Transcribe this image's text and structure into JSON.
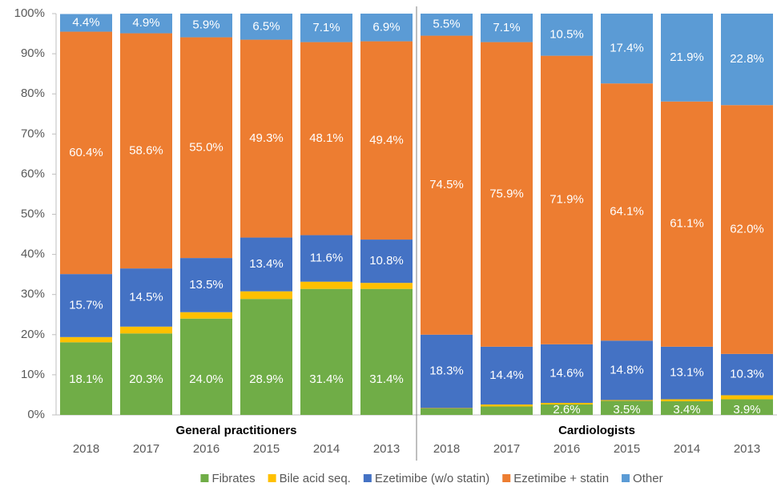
{
  "chart_data": {
    "type": "stacked_bar",
    "groups": [
      "General practitioners",
      "Cardiologists"
    ],
    "categories": [
      "2018",
      "2017",
      "2016",
      "2015",
      "2014",
      "2013",
      "2018",
      "2017",
      "2016",
      "2015",
      "2014",
      "2013"
    ],
    "ylim": [
      0,
      100
    ],
    "yticks": [
      {
        "value": 0,
        "label": "0%"
      },
      {
        "value": 10,
        "label": "10%"
      },
      {
        "value": 20,
        "label": "20%"
      },
      {
        "value": 30,
        "label": "30%"
      },
      {
        "value": 40,
        "label": "40%"
      },
      {
        "value": 50,
        "label": "50%"
      },
      {
        "value": 60,
        "label": "60%"
      },
      {
        "value": 70,
        "label": "70%"
      },
      {
        "value": 80,
        "label": "80%"
      },
      {
        "value": 90,
        "label": "90%"
      },
      {
        "value": 100,
        "label": "100%"
      }
    ],
    "legend": "bottom",
    "series": [
      {
        "name": "Fibrates",
        "color": "#70ad47",
        "values": [
          18.1,
          20.3,
          24.0,
          28.9,
          31.4,
          31.4,
          1.6,
          2.1,
          2.6,
          3.5,
          3.4,
          3.9
        ],
        "value_labels": [
          "18.1%",
          "20.3%",
          "24.0%",
          "28.9%",
          "31.4%",
          "31.4%",
          null,
          null,
          "2.6%",
          "3.5%",
          "3.4%",
          "3.9%"
        ]
      },
      {
        "name": "Bile acid seq.",
        "color": "#ffc000",
        "values": [
          1.3,
          1.7,
          1.6,
          1.9,
          1.8,
          1.5,
          0.1,
          0.5,
          0.4,
          0.2,
          0.5,
          1.0
        ]
      },
      {
        "name": "Ezetimibe (w/o statin)",
        "color": "#4472c4",
        "values": [
          15.7,
          14.5,
          13.5,
          13.4,
          11.6,
          10.8,
          18.3,
          14.4,
          14.6,
          14.8,
          13.1,
          10.3
        ],
        "value_labels": [
          "15.7%",
          "14.5%",
          "13.5%",
          "13.4%",
          "11.6%",
          "10.8%",
          "18.3%",
          "14.4%",
          "14.6%",
          "14.8%",
          "13.1%",
          "10.3%"
        ]
      },
      {
        "name": "Ezetimibe + statin",
        "color": "#ed7d31",
        "values": [
          60.4,
          58.6,
          55.0,
          49.3,
          48.1,
          49.4,
          74.5,
          75.9,
          71.9,
          64.1,
          61.1,
          62.0
        ],
        "value_labels": [
          "60.4%",
          "58.6%",
          "55.0%",
          "49.3%",
          "48.1%",
          "49.4%",
          "74.5%",
          "75.9%",
          "71.9%",
          "64.1%",
          "61.1%",
          "62.0%"
        ]
      },
      {
        "name": "Other",
        "color": "#5b9bd5",
        "values": [
          4.4,
          4.9,
          5.9,
          6.5,
          7.1,
          6.9,
          5.5,
          7.1,
          10.5,
          17.4,
          21.9,
          22.8
        ],
        "value_labels": [
          "4.4%",
          "4.9%",
          "5.9%",
          "6.5%",
          "7.1%",
          "6.9%",
          "5.5%",
          "7.1%",
          "10.5%",
          "17.4%",
          "21.9%",
          "22.8%"
        ]
      }
    ]
  }
}
